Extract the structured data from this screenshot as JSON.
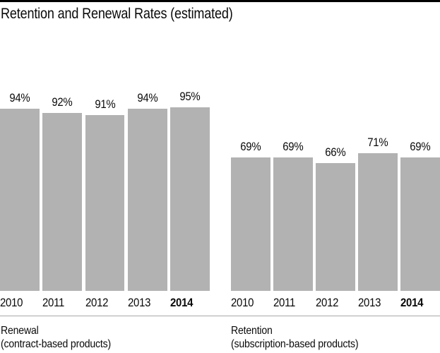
{
  "title": "Retention and Renewal Rates (estimated)",
  "colors": {
    "bar": "#b2b2b2",
    "top_rule": "#000000",
    "bottom_rule": "#a8a8a8",
    "text": "#0a0a0a"
  },
  "chart_data": [
    {
      "type": "bar",
      "title": "Renewal",
      "subtitle": "(contract-based products)",
      "categories": [
        "2010",
        "2011",
        "2012",
        "2013",
        "2014"
      ],
      "values": [
        94,
        92,
        91,
        94,
        95
      ],
      "value_labels": [
        "94%",
        "92%",
        "91%",
        "94%",
        "95%"
      ],
      "unit": "%",
      "ylim": [
        0,
        100
      ],
      "grid": false,
      "legend": false,
      "highlight_category": "2014"
    },
    {
      "type": "bar",
      "title": "Retention",
      "subtitle": "(subscription-based products)",
      "categories": [
        "2010",
        "2011",
        "2012",
        "2013",
        "2014"
      ],
      "values": [
        69,
        69,
        66,
        71,
        69
      ],
      "value_labels": [
        "69%",
        "69%",
        "66%",
        "71%",
        "69%"
      ],
      "unit": "%",
      "ylim": [
        0,
        100
      ],
      "grid": false,
      "legend": false,
      "highlight_category": "2014"
    }
  ]
}
